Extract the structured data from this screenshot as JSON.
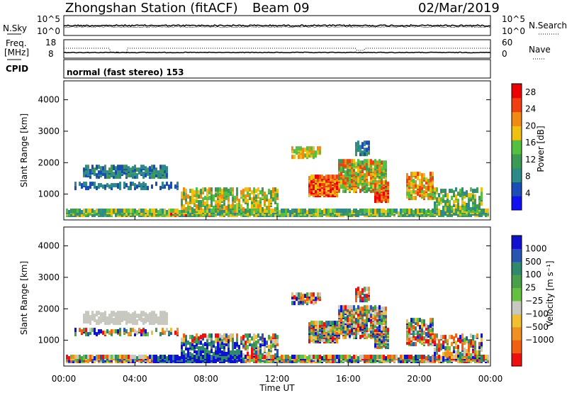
{
  "header": {
    "station": "Zhongshan Station (fitACF)",
    "beam": "Beam 09",
    "date": "02/Mar/2019"
  },
  "aux_panels": {
    "nsky_label": "N.Sky",
    "nsky_ticks": [
      "10^5",
      "10^0"
    ],
    "nsearch_label": "N.Search",
    "freq_label_1": "Freq.",
    "freq_label_2": "[MHz]",
    "freq_ticks": [
      "18",
      "8"
    ],
    "nave_label": "Nave",
    "nave_ticks": [
      "60",
      "0"
    ],
    "cpid_label": "CPID",
    "cpid_text": "normal (fast stereo) 153"
  },
  "chart_data": [
    {
      "type": "heatmap",
      "name": "power",
      "ylabel": "Slant Range [km]",
      "xlabel": "",
      "x_ticks": [
        "00:00",
        "04:00",
        "08:00",
        "12:00",
        "16:00",
        "20:00",
        "00:00"
      ],
      "xlim_hours": [
        0,
        24
      ],
      "y_ticks": [
        1000,
        2000,
        3000,
        4000
      ],
      "ylim": [
        180,
        4600
      ],
      "colorbar": {
        "label": "Power [dB]",
        "ticks": [
          4,
          8,
          12,
          16,
          20,
          24,
          28
        ],
        "range": [
          0,
          30
        ],
        "colors": [
          "#1010f0",
          "#1a4db8",
          "#2e8a8a",
          "#3d9a55",
          "#55c040",
          "#f0c010",
          "#f08a10",
          "#f04010",
          "#ee0000"
        ]
      }
    },
    {
      "type": "heatmap",
      "name": "velocity",
      "ylabel": "Slant Range [km]",
      "xlabel": "Time UT",
      "x_ticks": [
        "00:00",
        "04:00",
        "08:00",
        "12:00",
        "16:00",
        "20:00",
        "00:00"
      ],
      "xlim_hours": [
        0,
        24
      ],
      "y_ticks": [
        1000,
        2000,
        3000,
        4000
      ],
      "ylim": [
        180,
        4600
      ],
      "colorbar": {
        "label": "Velocity [m s⁻¹]",
        "ticks": [
          "1000",
          "500",
          "100",
          "25",
          "−25",
          "−100",
          "−500",
          "−1000"
        ],
        "colors": [
          "#1010d0",
          "#2855b0",
          "#2e8a6a",
          "#4aa04a",
          "#66c040",
          "#c8c8c0",
          "#f0c030",
          "#f09020",
          "#f06010",
          "#ee1010"
        ]
      }
    }
  ]
}
